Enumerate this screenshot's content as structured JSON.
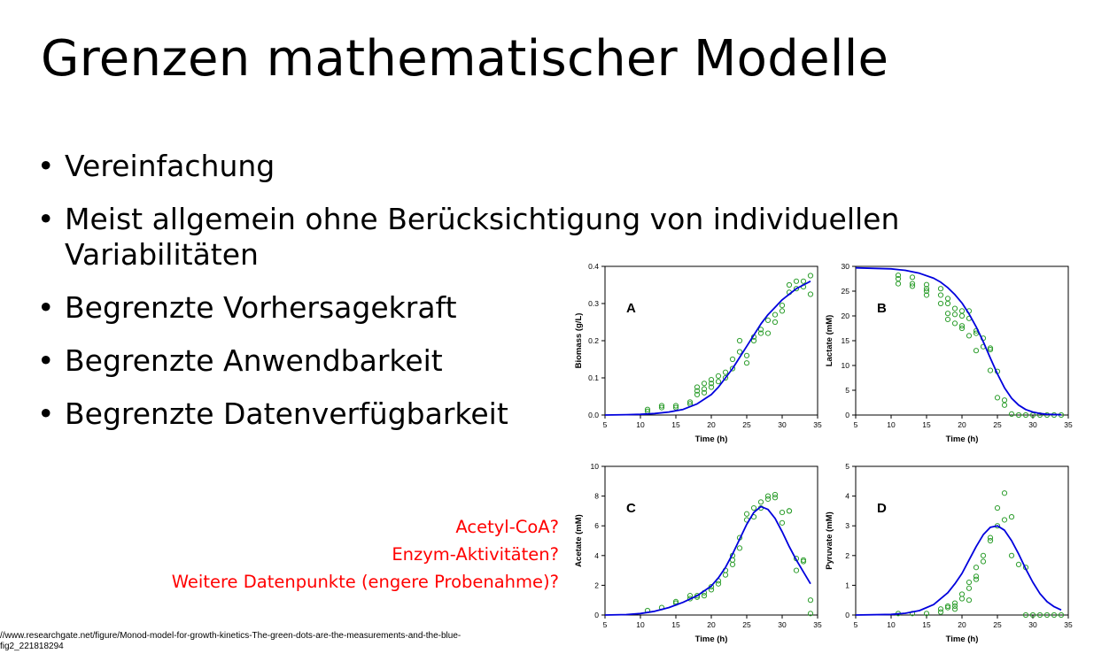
{
  "slide": {
    "title": "Grenzen mathematischer Modelle",
    "bullets": [
      {
        "line1": "Vereinfachung",
        "line2": ""
      },
      {
        "line1": "Meist allgemein ohne Berücksichtigung von individuellen",
        "line2": "Variabilitäten"
      },
      {
        "line1": "Begrenzte Vorhersagekraft",
        "line2": ""
      },
      {
        "line1": "Begrenzte Anwendbarkeit",
        "line2": ""
      },
      {
        "line1": "Begrenzte Datenverfügbarkeit",
        "line2": ""
      }
    ],
    "notes": [
      "Acetyl-CoA?",
      "Enzym-Aktivitäten?",
      "Weitere Datenpunkte (engere Probenahme)?"
    ],
    "source_line1": "//www.researchgate.net/figure/Monod-model-for-growth-kinetics-The-green-dots-are-the-measurements-and-the-blue-",
    "source_line2": "fig2_221818294",
    "colors": {
      "notes": "#ff0000",
      "model_line": "#0000dd",
      "measurements": "#2e9e2e"
    }
  },
  "chart_data": [
    {
      "type": "scatter",
      "panel_label": "A",
      "xlabel": "Time (h)",
      "ylabel": "Biomass (g/L)",
      "xlim": [
        5,
        35
      ],
      "ylim": [
        0,
        0.4
      ],
      "xticks": [
        5,
        10,
        15,
        20,
        25,
        30,
        35
      ],
      "yticks": [
        0.0,
        0.1,
        0.2,
        0.3,
        0.4
      ],
      "ytick_labels": [
        "0.0",
        "0.1",
        "0.2",
        "0.3",
        "0.4"
      ],
      "model": {
        "x": [
          5,
          8,
          10,
          12,
          14,
          16,
          18,
          20,
          21,
          22,
          23,
          24,
          25,
          26,
          27,
          28,
          29,
          30,
          31,
          32,
          33,
          34
        ],
        "y": [
          0,
          0.001,
          0.002,
          0.004,
          0.008,
          0.015,
          0.03,
          0.055,
          0.075,
          0.1,
          0.125,
          0.155,
          0.185,
          0.215,
          0.245,
          0.27,
          0.29,
          0.31,
          0.325,
          0.34,
          0.35,
          0.36
        ]
      },
      "points": {
        "x": [
          11,
          11,
          13,
          13,
          15,
          15,
          17,
          17,
          18,
          18,
          18,
          19,
          19,
          19,
          20,
          20,
          20,
          21,
          21,
          22,
          22,
          23,
          23,
          24,
          24,
          25,
          25,
          26,
          26,
          27,
          27,
          28,
          28,
          29,
          29,
          30,
          30,
          31,
          31,
          32,
          32,
          33,
          33,
          34,
          34
        ],
        "y": [
          0.015,
          0.01,
          0.025,
          0.02,
          0.025,
          0.02,
          0.035,
          0.03,
          0.075,
          0.065,
          0.055,
          0.085,
          0.07,
          0.06,
          0.095,
          0.085,
          0.075,
          0.105,
          0.09,
          0.115,
          0.1,
          0.15,
          0.125,
          0.2,
          0.17,
          0.16,
          0.14,
          0.21,
          0.2,
          0.23,
          0.22,
          0.255,
          0.22,
          0.27,
          0.25,
          0.295,
          0.28,
          0.35,
          0.33,
          0.36,
          0.34,
          0.36,
          0.345,
          0.375,
          0.325
        ]
      }
    },
    {
      "type": "scatter",
      "panel_label": "B",
      "xlabel": "Time (h)",
      "ylabel": "Lactate (mM)",
      "xlim": [
        5,
        35
      ],
      "ylim": [
        0,
        30
      ],
      "xticks": [
        5,
        10,
        15,
        20,
        25,
        30,
        35
      ],
      "yticks": [
        0,
        5,
        10,
        15,
        20,
        25,
        30
      ],
      "ytick_labels": [
        "0",
        "5",
        "10",
        "15",
        "20",
        "25",
        "30"
      ],
      "model": {
        "x": [
          5,
          10,
          12,
          14,
          16,
          17,
          18,
          19,
          20,
          21,
          22,
          23,
          24,
          25,
          26,
          27,
          28,
          29,
          30,
          31,
          32,
          34
        ],
        "y": [
          29.7,
          29.5,
          29.2,
          28.6,
          27.6,
          26.8,
          25.7,
          24.3,
          22.6,
          20.4,
          17.8,
          14.8,
          11.5,
          8.3,
          5.5,
          3.4,
          2,
          1.1,
          0.6,
          0.3,
          0.15,
          0.05
        ]
      },
      "points": {
        "x": [
          11,
          11,
          11,
          13,
          13,
          13,
          15,
          15,
          15,
          15,
          17,
          17,
          17,
          18,
          18,
          18,
          18,
          19,
          19,
          19,
          20,
          20,
          20,
          20,
          21,
          21,
          21,
          22,
          22,
          22,
          23,
          23,
          24,
          24,
          24,
          25,
          25,
          26,
          26,
          27,
          28,
          29,
          30,
          31,
          32,
          33,
          34
        ],
        "y": [
          28.2,
          27.5,
          26.5,
          27.8,
          26.5,
          26,
          26.3,
          25.5,
          25,
          24.2,
          25.5,
          24.2,
          22.5,
          23.5,
          22.5,
          20.5,
          19.3,
          21.5,
          20.3,
          18.5,
          21,
          20,
          18,
          17.5,
          21,
          19.5,
          16,
          17,
          16.5,
          13,
          15.5,
          13.8,
          13.5,
          9,
          13.2,
          8.8,
          3.5,
          3,
          2,
          0.2,
          0,
          0,
          0,
          0,
          0,
          0,
          0
        ]
      }
    },
    {
      "type": "scatter",
      "panel_label": "C",
      "xlabel": "Time (h)",
      "ylabel": "Acetate (mM)",
      "xlim": [
        5,
        35
      ],
      "ylim": [
        0,
        10
      ],
      "xticks": [
        5,
        10,
        15,
        20,
        25,
        30,
        35
      ],
      "yticks": [
        0,
        2,
        4,
        6,
        8,
        10
      ],
      "ytick_labels": [
        "0",
        "2",
        "4",
        "6",
        "8",
        "10"
      ],
      "model": {
        "x": [
          5,
          8,
          10,
          12,
          14,
          16,
          18,
          20,
          21,
          22,
          23,
          24,
          25,
          26,
          27,
          28,
          29,
          30,
          31,
          32,
          33,
          34
        ],
        "y": [
          0,
          0.03,
          0.1,
          0.25,
          0.5,
          0.85,
          1.3,
          1.95,
          2.5,
          3.2,
          4.1,
          5.1,
          6.1,
          6.9,
          7.3,
          7.1,
          6.5,
          5.6,
          4.6,
          3.7,
          2.9,
          2.1
        ]
      },
      "points": {
        "x": [
          11,
          13,
          15,
          15,
          17,
          17,
          18,
          18,
          19,
          19,
          20,
          20,
          21,
          21,
          22,
          22,
          23,
          23,
          23,
          24,
          24,
          25,
          25,
          26,
          26,
          27,
          27,
          28,
          28,
          29,
          29,
          30,
          30,
          31,
          31,
          32,
          32,
          33,
          33,
          34,
          34
        ],
        "y": [
          0.3,
          0.5,
          0.9,
          0.8,
          1.3,
          1.1,
          1.3,
          1.2,
          1.5,
          1.3,
          1.9,
          1.7,
          2.3,
          2.1,
          3,
          2.7,
          4,
          3.7,
          3.4,
          5.2,
          4.5,
          6.8,
          6.4,
          7.2,
          6.6,
          7.6,
          7.2,
          8,
          7.8,
          8.1,
          7.9,
          6.2,
          6.9,
          7,
          7,
          3.8,
          3,
          3.7,
          3.6,
          1,
          0.1
        ]
      }
    },
    {
      "type": "scatter",
      "panel_label": "D",
      "xlabel": "Time (h)",
      "ylabel": "Pyruvate (mM)",
      "xlim": [
        5,
        35
      ],
      "ylim": [
        0,
        5
      ],
      "xticks": [
        5,
        10,
        15,
        20,
        25,
        30,
        35
      ],
      "yticks": [
        0,
        1,
        2,
        3,
        4,
        5
      ],
      "ytick_labels": [
        "0",
        "1",
        "2",
        "3",
        "4",
        "5"
      ],
      "model": {
        "x": [
          5,
          10,
          12,
          14,
          16,
          18,
          19,
          20,
          21,
          22,
          23,
          24,
          25,
          26,
          27,
          28,
          29,
          30,
          31,
          32,
          33,
          34
        ],
        "y": [
          0,
          0.02,
          0.06,
          0.15,
          0.35,
          0.75,
          1.05,
          1.4,
          1.85,
          2.3,
          2.7,
          2.95,
          3,
          2.85,
          2.5,
          2.05,
          1.55,
          1.1,
          0.72,
          0.45,
          0.28,
          0.17
        ]
      },
      "points": {
        "x": [
          11,
          13,
          15,
          17,
          17,
          18,
          18,
          19,
          19,
          19,
          20,
          20,
          21,
          21,
          21,
          22,
          22,
          22,
          23,
          23,
          24,
          24,
          25,
          25,
          26,
          26,
          27,
          27,
          28,
          29,
          29,
          30,
          31,
          32,
          33,
          34
        ],
        "y": [
          0.05,
          0.05,
          0.05,
          0.2,
          0.1,
          0.3,
          0.25,
          0.4,
          0.3,
          0.2,
          0.7,
          0.55,
          1.1,
          0.9,
          0.5,
          1.6,
          1.3,
          1.2,
          2,
          1.8,
          2.6,
          2.5,
          3.6,
          3,
          4.1,
          3.2,
          3.3,
          2,
          1.7,
          1.6,
          0,
          0,
          0,
          0,
          0,
          0
        ]
      }
    }
  ]
}
